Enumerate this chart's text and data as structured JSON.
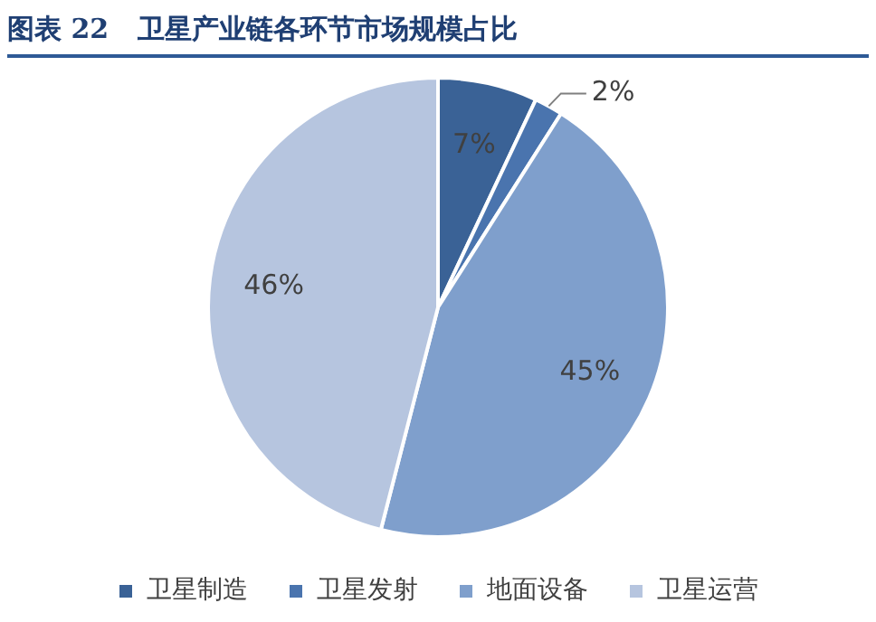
{
  "chart_data": {
    "type": "pie",
    "title": "图表 22   卫星产业链各环节市场规模占比",
    "categories": [
      "卫星制造",
      "卫星发射",
      "地面设备",
      "卫星运营"
    ],
    "values": [
      7,
      2,
      45,
      46
    ],
    "colors": [
      "#3a6296",
      "#4a74ae",
      "#7f9fcc",
      "#b6c5df"
    ],
    "value_labels": [
      "7%",
      "2%",
      "45%",
      "46%"
    ],
    "legend": "bottom"
  }
}
